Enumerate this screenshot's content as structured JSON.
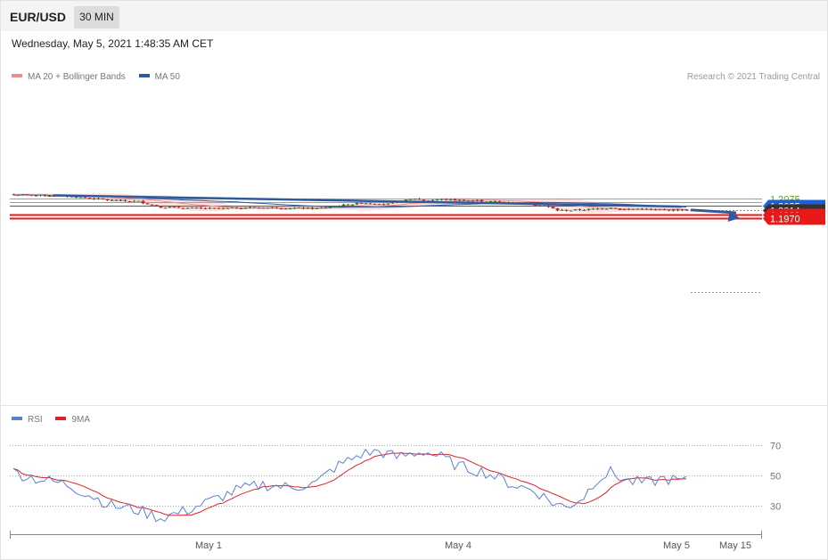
{
  "header": {
    "symbol": "EUR/USD",
    "timeframe": "30 MIN"
  },
  "datetime": "Wednesday, May 5, 2021 1:48:35 AM CET",
  "legend": {
    "price": [
      {
        "label": "MA 20 + Bollinger Bands",
        "color": "#f28b8b"
      },
      {
        "label": "MA 50",
        "color": "#2f5a9e"
      }
    ],
    "rsi": [
      {
        "label": "RSI",
        "color": "#5b7fd6"
      },
      {
        "label": "9MA",
        "color": "#dd2222"
      }
    ]
  },
  "copyright": "Research © 2021 Trading Central",
  "colors": {
    "up": "#2e7d32",
    "down": "#c62828",
    "band": "#fde2e2",
    "ma20": "#f28b8b",
    "ma50": "#2f5a9e",
    "trend": "#2f5a9e",
    "green_level": "#7cc243",
    "blue_level": "#1f5fd6",
    "red_level": "#e81919",
    "current": "#333333",
    "rsi": "#5b7fd6",
    "rsi_ma": "#dd2222"
  },
  "chart_data": [
    {
      "type": "candlestick",
      "title": "EUR/USD 30 MIN",
      "ylim": [
        1.1962,
        1.211
      ],
      "x_labels": [
        "May 1",
        "May 4",
        "May 5",
        "May 15"
      ],
      "levels": [
        {
          "value": "1.2075",
          "price": 1.2075,
          "style": "green_line"
        },
        {
          "value": "1.2055",
          "price": 1.2055,
          "style": "green_line"
        },
        {
          "value": "1.2035",
          "price": 1.2035,
          "style": "blue_line"
        },
        {
          "value": "1.2014",
          "price": 1.2014,
          "style": "current"
        },
        {
          "value": "1.1990",
          "price": 1.199,
          "style": "red_line"
        },
        {
          "value": "1.1970",
          "price": 1.197,
          "style": "red_line"
        }
      ],
      "trendline": {
        "from_index": 9,
        "from_price": 1.2092,
        "to_index": 150,
        "to_price": 1.2032
      },
      "forecast_arrow": {
        "from_index": 152,
        "from_price": 1.2014,
        "to_index": 163,
        "to_price": 1.197
      },
      "candle_waypoints": [
        [
          0,
          1.2095
        ],
        [
          8,
          1.2091
        ],
        [
          13,
          1.2085
        ],
        [
          18,
          1.2075
        ],
        [
          22,
          1.2064
        ],
        [
          28,
          1.206
        ],
        [
          31,
          1.204
        ],
        [
          33,
          1.203
        ],
        [
          40,
          1.2023
        ],
        [
          46,
          1.2021
        ],
        [
          52,
          1.2026
        ],
        [
          58,
          1.2026
        ],
        [
          62,
          1.2024
        ],
        [
          68,
          1.2022
        ],
        [
          70,
          1.2027
        ],
        [
          73,
          1.2037
        ],
        [
          78,
          1.2051
        ],
        [
          84,
          1.2046
        ],
        [
          90,
          1.2075
        ],
        [
          92,
          1.2064
        ],
        [
          96,
          1.207
        ],
        [
          104,
          1.2063
        ],
        [
          108,
          1.2058
        ],
        [
          112,
          1.2053
        ],
        [
          116,
          1.2044
        ],
        [
          119,
          1.2037
        ],
        [
          122,
          1.2012
        ],
        [
          125,
          1.2012
        ],
        [
          128,
          1.2016
        ],
        [
          133,
          1.2023
        ],
        [
          134,
          1.2028
        ],
        [
          136,
          1.2016
        ],
        [
          140,
          1.202
        ],
        [
          144,
          1.2014
        ],
        [
          150,
          1.2014
        ]
      ],
      "rsi_levels": [
        70,
        50,
        30
      ],
      "rsi_waypoints": [
        [
          0,
          52
        ],
        [
          5,
          48
        ],
        [
          12,
          44
        ],
        [
          18,
          36
        ],
        [
          22,
          30
        ],
        [
          28,
          27
        ],
        [
          33,
          22
        ],
        [
          38,
          26
        ],
        [
          45,
          34
        ],
        [
          50,
          40
        ],
        [
          56,
          44
        ],
        [
          62,
          42
        ],
        [
          68,
          45
        ],
        [
          72,
          55
        ],
        [
          78,
          64
        ],
        [
          82,
          66
        ],
        [
          86,
          62
        ],
        [
          92,
          66
        ],
        [
          96,
          62
        ],
        [
          100,
          56
        ],
        [
          106,
          52
        ],
        [
          112,
          44
        ],
        [
          117,
          40
        ],
        [
          121,
          32
        ],
        [
          124,
          29
        ],
        [
          128,
          36
        ],
        [
          131,
          48
        ],
        [
          134,
          52
        ],
        [
          138,
          46
        ],
        [
          142,
          45
        ],
        [
          146,
          48
        ],
        [
          150,
          46
        ]
      ],
      "rsi_ylim": [
        20,
        80
      ]
    }
  ]
}
